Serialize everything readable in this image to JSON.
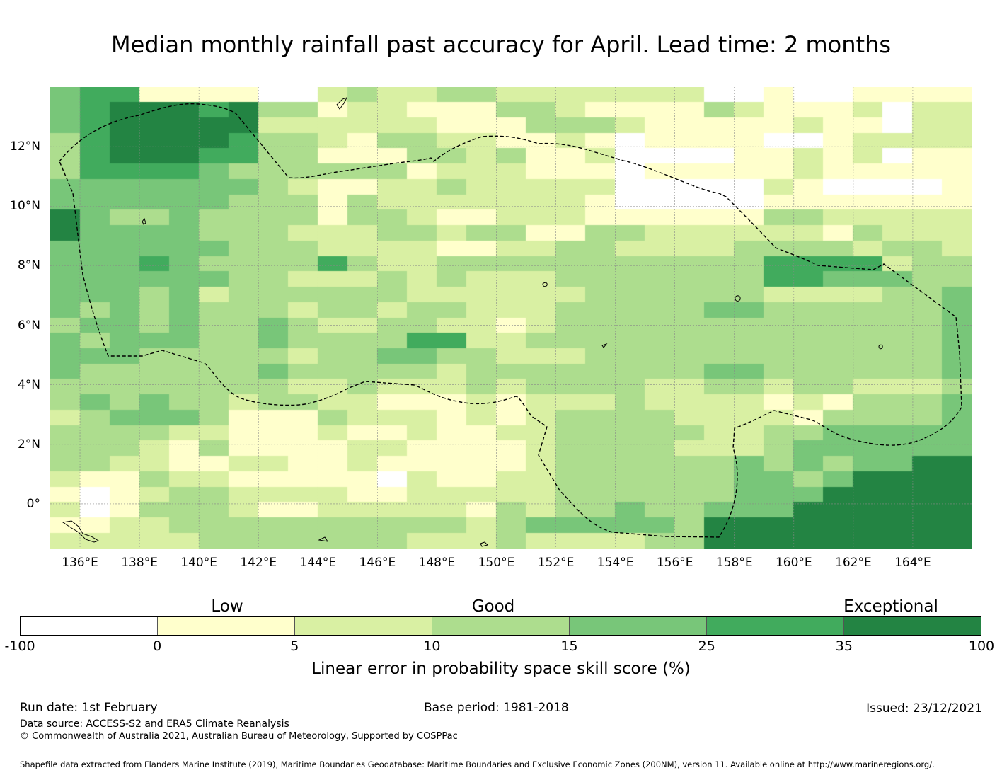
{
  "title": "Median monthly rainfall past accuracy for April. Lead time: 2 months",
  "map": {
    "x_ticks": [
      "136°E",
      "138°E",
      "140°E",
      "142°E",
      "144°E",
      "146°E",
      "148°E",
      "150°E",
      "152°E",
      "154°E",
      "156°E",
      "158°E",
      "160°E",
      "162°E",
      "164°E"
    ],
    "y_ticks": [
      "12°N",
      "10°N",
      "8°N",
      "6°N",
      "4°N",
      "2°N",
      "0°"
    ],
    "lon_range": [
      135,
      166
    ],
    "lat_range": [
      -1.5,
      14
    ],
    "grid_lines": true,
    "grid": {
      "rows_top_to_bottom": [
        "4551111002322332222222001001111",
        "4566656331221113321111321112022",
        "4566666222222111333211111211022",
        "3566665332133221121011110012222",
        "3566655331113323112000011212011",
        "3555543333331222111011111211111",
        "4444444321122322222000002100001",
        "4444443331322222221000001111111",
        "6433433331332112221111113322222",
        "6444433322233233113322222213222",
        "4444443332222112233222233332332",
        "4445433335322333333333335555233",
        "4444443322232322233333335544433",
        "4443423333332222223333332222334",
        "4343433323323322233333443333334",
        "3443433432233221233333333333334",
        "4344433433335522333333333333334",
        "4443333323344332223333333333334",
        "4333333433333233333333443333334",
        "3333333322322232333322332332223",
        "3434332332211121222322221213334",
        "2344431113222121233332222133334",
        "3333221112112112233333223344444",
        "3332131111221111233332223444444",
        "3322112211211111233333343434466",
        "2113221111102112233333344346666",
        "1012332222112222233333344466666",
        "2013332112222213233433444666666",
        "1122333333333323444443666666666",
        "2222233333332223222233666666666"
      ]
    },
    "colors": [
      "#ffffff",
      "#ffffcc",
      "#d9f0a3",
      "#addd8e",
      "#78c679",
      "#41ab5d",
      "#238443"
    ]
  },
  "colorbar": {
    "categories": [
      "Low",
      "Good",
      "Exceptional"
    ],
    "ticks": [
      "-100",
      "0",
      "5",
      "10",
      "15",
      "25",
      "35",
      "100"
    ],
    "label": "Linear error in probability space skill score (%)"
  },
  "footer": {
    "run_date": "Run date: 1st February",
    "base_period": "Base period: 1981-2018",
    "issued": "Issued: 23/12/2021",
    "data_source": "Data source: ACCESS-S2 and ERA5 Climate Reanalysis",
    "copyright": "© Commonwealth of Australia 2021, Australian Bureau of Meteorology, Supported by COSPPac",
    "shapefile": "Shapefile data extracted from Flanders Marine Institute (2019), Maritime Boundaries Geodatabase: Maritime Boundaries and Exclusive Economic Zones (200NM), version 11. Available online at http://www.marineregions.org/."
  }
}
